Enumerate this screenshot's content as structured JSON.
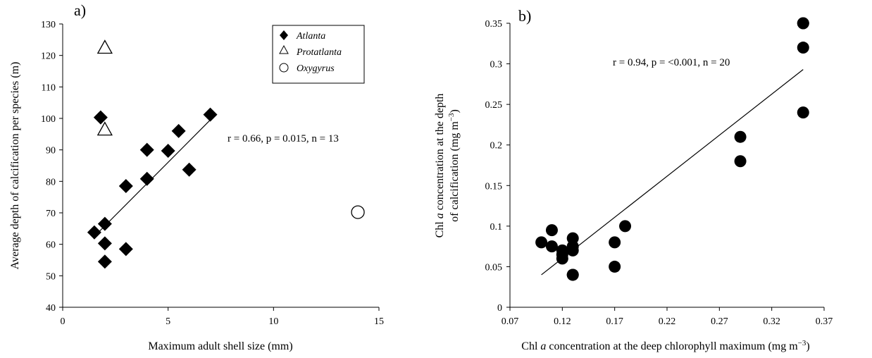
{
  "chart_data": [
    {
      "type": "scatter",
      "panel_label": "a)",
      "xlabel": "Maximum adult shell size (mm)",
      "ylabel": "Average depth of calcification per species (m)",
      "xlim": [
        0,
        15
      ],
      "ylim": [
        40,
        130
      ],
      "xticks": [
        0,
        5,
        10,
        15
      ],
      "yticks": [
        40,
        50,
        60,
        70,
        80,
        90,
        100,
        110,
        120,
        130
      ],
      "legend_position": "top-right",
      "annotation": "r = 0.66, p = 0.015, n = 13",
      "trendline": {
        "x": [
          1.5,
          7.0
        ],
        "y": [
          62.5,
          99.5
        ]
      },
      "series": [
        {
          "name": "Atlanta",
          "marker": "diamond-filled",
          "points": [
            {
              "x": 1.8,
              "y": 100.3
            },
            {
              "x": 1.5,
              "y": 63.8
            },
            {
              "x": 2.0,
              "y": 66.5
            },
            {
              "x": 2.0,
              "y": 60.3
            },
            {
              "x": 2.0,
              "y": 54.5
            },
            {
              "x": 3.0,
              "y": 78.5
            },
            {
              "x": 3.0,
              "y": 58.5
            },
            {
              "x": 4.0,
              "y": 90.0
            },
            {
              "x": 4.0,
              "y": 80.8
            },
            {
              "x": 5.0,
              "y": 89.7
            },
            {
              "x": 5.5,
              "y": 96.0
            },
            {
              "x": 6.0,
              "y": 83.7
            },
            {
              "x": 7.0,
              "y": 101.2
            }
          ]
        },
        {
          "name": "Protatlanta",
          "marker": "triangle-open",
          "points": [
            {
              "x": 2.0,
              "y": 122.5
            },
            {
              "x": 2.0,
              "y": 96.5
            }
          ]
        },
        {
          "name": "Oxygyrus",
          "marker": "circle-open",
          "points": [
            {
              "x": 14.0,
              "y": 70.2
            }
          ]
        }
      ]
    },
    {
      "type": "scatter",
      "panel_label": "b)",
      "xlabel_parts": [
        "Chl ",
        "a",
        " concentration at the deep chlorophyll maximum (mg m",
        "−3",
        ")"
      ],
      "ylabel_line1_parts": [
        "Chl ",
        "a",
        " concentration at the depth"
      ],
      "ylabel_line2_parts": [
        "of calcification (mg m",
        "−3",
        ")"
      ],
      "xlim": [
        0.07,
        0.37
      ],
      "ylim": [
        0,
        0.35
      ],
      "xticks": [
        "0.07",
        "0.12",
        "0.17",
        "0.22",
        "0.27",
        "0.32",
        "0.37"
      ],
      "yticks": [
        "0",
        "0.05",
        "0.1",
        "0.15",
        "0.2",
        "0.25",
        "0.3",
        "0.35"
      ],
      "annotation": "r = 0.94, p = <0.001, n = 20",
      "trendline": {
        "x": [
          0.1,
          0.35
        ],
        "y": [
          0.04,
          0.293
        ]
      },
      "series": [
        {
          "marker": "circle-filled",
          "points": [
            {
              "x": 0.1,
              "y": 0.08
            },
            {
              "x": 0.11,
              "y": 0.095
            },
            {
              "x": 0.11,
              "y": 0.075
            },
            {
              "x": 0.12,
              "y": 0.07
            },
            {
              "x": 0.12,
              "y": 0.065
            },
            {
              "x": 0.12,
              "y": 0.06
            },
            {
              "x": 0.13,
              "y": 0.085
            },
            {
              "x": 0.13,
              "y": 0.075
            },
            {
              "x": 0.13,
              "y": 0.07
            },
            {
              "x": 0.13,
              "y": 0.04
            },
            {
              "x": 0.13,
              "y": 0.04
            },
            {
              "x": 0.17,
              "y": 0.08
            },
            {
              "x": 0.17,
              "y": 0.05
            },
            {
              "x": 0.18,
              "y": 0.1
            },
            {
              "x": 0.29,
              "y": 0.21
            },
            {
              "x": 0.29,
              "y": 0.18
            },
            {
              "x": 0.35,
              "y": 0.35
            },
            {
              "x": 0.35,
              "y": 0.32
            },
            {
              "x": 0.35,
              "y": 0.24
            },
            {
              "x": 0.35,
              "y": 0.35
            }
          ]
        }
      ]
    }
  ]
}
